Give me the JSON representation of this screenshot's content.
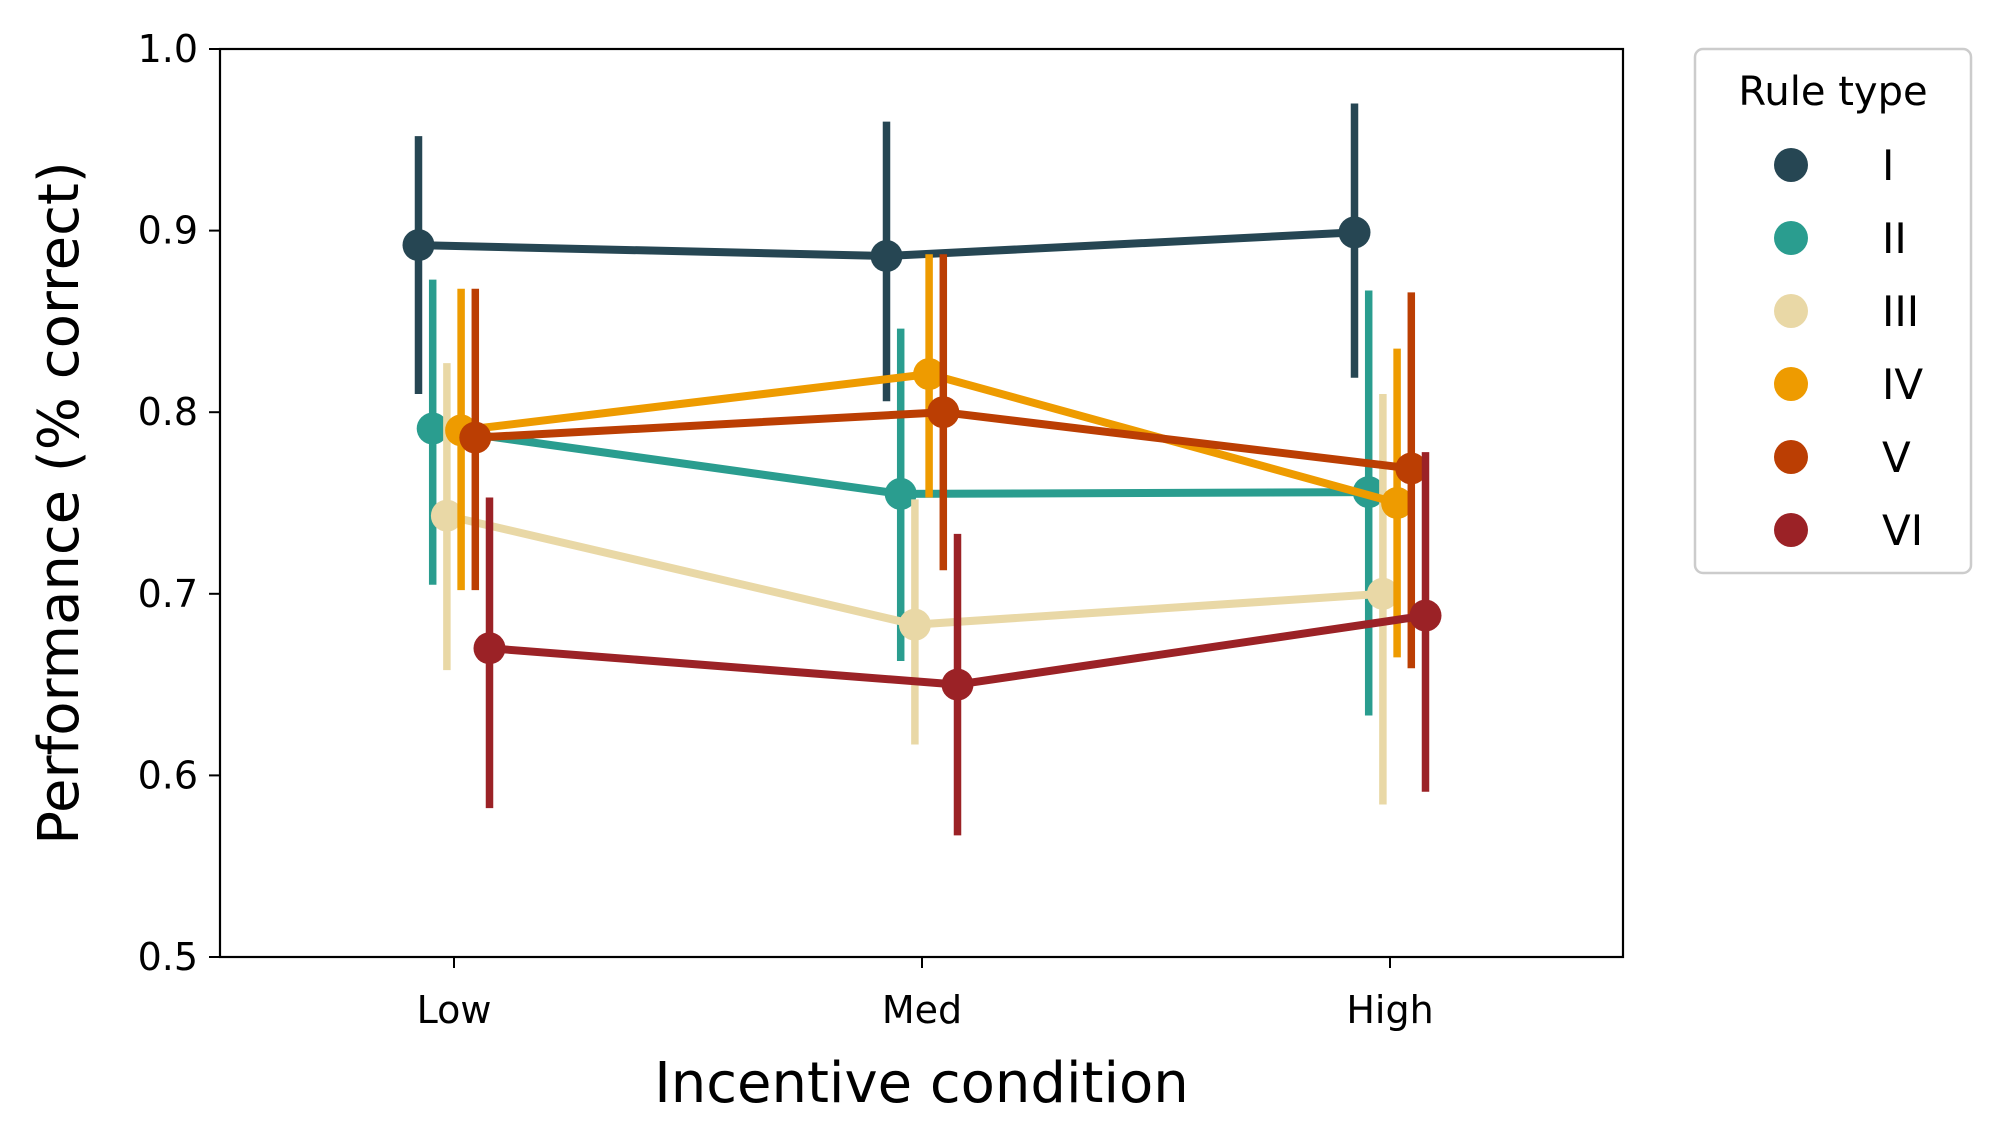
{
  "chart_data": {
    "type": "line",
    "xlabel": "Incentive condition",
    "ylabel": "Performance (% correct)",
    "categories": [
      "Low",
      "Med",
      "High"
    ],
    "ylim": [
      0.5,
      1.0
    ],
    "yticks": [
      "0.5",
      "0.6",
      "0.7",
      "0.8",
      "0.9",
      "1.0"
    ],
    "grid": false,
    "legend": {
      "title": "Rule type",
      "placement": "outside right, top"
    },
    "series": [
      {
        "name": "I",
        "color": "#264653",
        "values": [
          0.892,
          0.886,
          0.899
        ],
        "lower": [
          0.81,
          0.806,
          0.819
        ],
        "upper": [
          0.952,
          0.96,
          0.97
        ]
      },
      {
        "name": "II",
        "color": "#2a9d8f",
        "values": [
          0.791,
          0.755,
          0.756
        ],
        "lower": [
          0.705,
          0.663,
          0.633
        ],
        "upper": [
          0.873,
          0.846,
          0.867
        ]
      },
      {
        "name": "III",
        "color": "#e9d8a6",
        "values": [
          0.743,
          0.683,
          0.7
        ],
        "lower": [
          0.658,
          0.617,
          0.584
        ],
        "upper": [
          0.827,
          0.752,
          0.81
        ]
      },
      {
        "name": "IV",
        "color": "#ee9b00",
        "values": [
          0.79,
          0.821,
          0.75
        ],
        "lower": [
          0.702,
          0.753,
          0.665
        ],
        "upper": [
          0.868,
          0.887,
          0.835
        ]
      },
      {
        "name": "V",
        "color": "#bb3e03",
        "values": [
          0.786,
          0.8,
          0.769
        ],
        "lower": [
          0.702,
          0.713,
          0.659
        ],
        "upper": [
          0.868,
          0.887,
          0.866
        ]
      },
      {
        "name": "VI",
        "color": "#9b2226",
        "values": [
          0.67,
          0.65,
          0.688
        ],
        "lower": [
          0.582,
          0.567,
          0.591
        ],
        "upper": [
          0.753,
          0.733,
          0.778
        ]
      }
    ]
  }
}
